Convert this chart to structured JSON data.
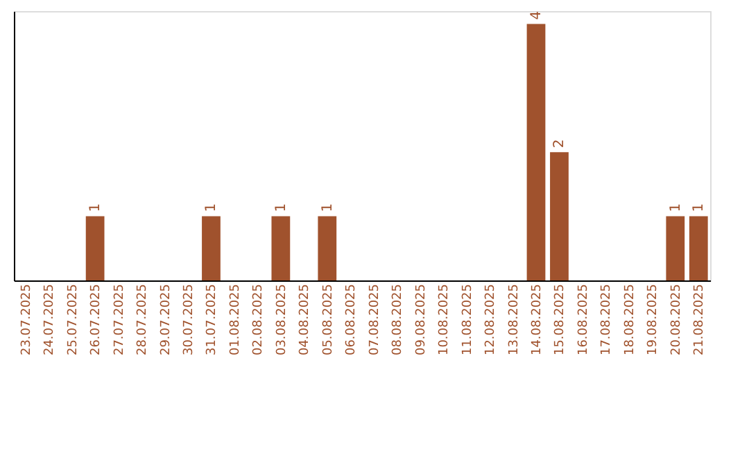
{
  "chart_data": {
    "type": "bar",
    "categories": [
      "23.07.2025",
      "24.07.2025",
      "25.07.2025",
      "26.07.2025",
      "27.07.2025",
      "28.07.2025",
      "29.07.2025",
      "30.07.2025",
      "31.07.2025",
      "01.08.2025",
      "02.08.2025",
      "03.08.2025",
      "04.08.2025",
      "05.08.2025",
      "06.08.2025",
      "07.08.2025",
      "08.08.2025",
      "09.08.2025",
      "10.08.2025",
      "11.08.2025",
      "12.08.2025",
      "13.08.2025",
      "14.08.2025",
      "15.08.2025",
      "16.08.2025",
      "17.08.2025",
      "18.08.2025",
      "19.08.2025",
      "20.08.2025",
      "21.08.2025"
    ],
    "values": [
      0,
      0,
      0,
      1,
      0,
      0,
      0,
      0,
      1,
      0,
      0,
      1,
      0,
      1,
      0,
      0,
      0,
      0,
      0,
      0,
      0,
      0,
      4,
      2,
      0,
      0,
      0,
      0,
      1,
      1
    ],
    "value_labels": [
      null,
      null,
      null,
      "1",
      null,
      null,
      null,
      null,
      "1",
      null,
      null,
      "1",
      null,
      "1",
      null,
      null,
      null,
      null,
      null,
      null,
      null,
      null,
      "4",
      "2",
      null,
      null,
      null,
      null,
      "1",
      "1"
    ],
    "color": "#a0522d",
    "ylim": [
      0,
      4.2
    ],
    "tick_labels": "x"
  }
}
